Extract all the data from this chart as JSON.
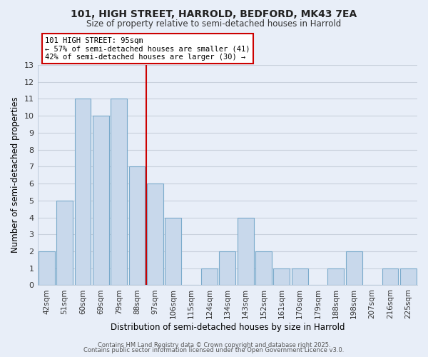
{
  "title1": "101, HIGH STREET, HARROLD, BEDFORD, MK43 7EA",
  "title2": "Size of property relative to semi-detached houses in Harrold",
  "xlabel": "Distribution of semi-detached houses by size in Harrold",
  "ylabel": "Number of semi-detached properties",
  "bins": [
    "42sqm",
    "51sqm",
    "60sqm",
    "69sqm",
    "79sqm",
    "88sqm",
    "97sqm",
    "106sqm",
    "115sqm",
    "124sqm",
    "134sqm",
    "143sqm",
    "152sqm",
    "161sqm",
    "170sqm",
    "179sqm",
    "188sqm",
    "198sqm",
    "207sqm",
    "216sqm",
    "225sqm"
  ],
  "values": [
    2,
    5,
    11,
    10,
    11,
    7,
    6,
    4,
    0,
    1,
    2,
    4,
    2,
    1,
    1,
    0,
    1,
    2,
    0,
    1,
    1
  ],
  "bar_color": "#c8d8eb",
  "bar_edge_color": "#7aaacb",
  "red_line_index": 6,
  "annotation_title": "101 HIGH STREET: 95sqm",
  "annotation_line1": "← 57% of semi-detached houses are smaller (41)",
  "annotation_line2": "42% of semi-detached houses are larger (30) →",
  "annotation_box_color": "#ffffff",
  "annotation_box_edge": "#cc0000",
  "ylim_max": 13,
  "background_color": "#e8eef8",
  "grid_color": "#c8d0dc",
  "footer1": "Contains HM Land Registry data © Crown copyright and database right 2025.",
  "footer2": "Contains public sector information licensed under the Open Government Licence v3.0."
}
